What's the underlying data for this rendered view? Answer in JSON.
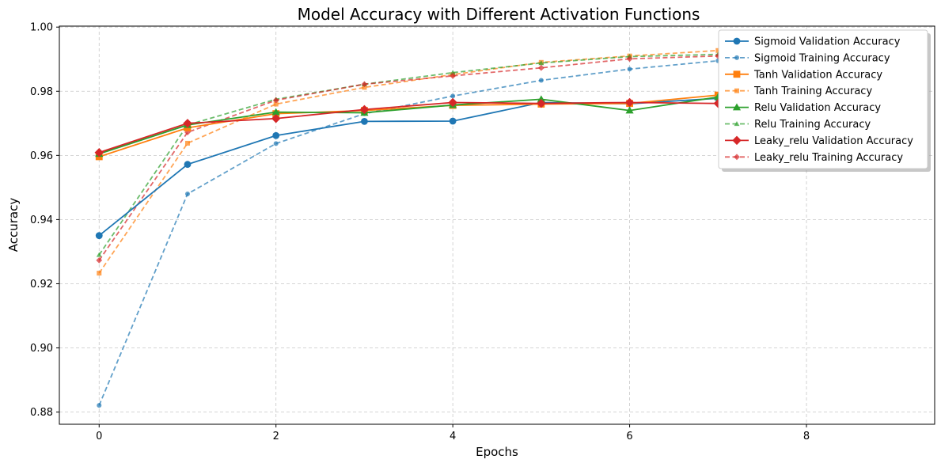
{
  "chart_data": {
    "type": "line",
    "title": "Model Accuracy with Different Activation Functions",
    "xlabel": "Epochs",
    "ylabel": "Accuracy",
    "xlim": [
      -0.45,
      9.45
    ],
    "ylim": [
      0.8762,
      1.0003
    ],
    "xticks": [
      0,
      2,
      4,
      6,
      8
    ],
    "yticks": [
      0.88,
      0.9,
      0.92,
      0.94,
      0.96,
      0.98,
      1.0
    ],
    "xtick_labels": [
      "0",
      "2",
      "4",
      "6",
      "8"
    ],
    "ytick_labels": [
      "0.88",
      "0.90",
      "0.92",
      "0.94",
      "0.96",
      "0.98",
      "1.00"
    ],
    "grid": true,
    "legend_position": "top-right",
    "x": [
      0,
      1,
      2,
      3,
      4,
      5,
      6,
      7,
      8,
      9
    ],
    "series": [
      {
        "name": "Sigmoid Validation Accuracy",
        "color": "#1f77b4",
        "style": "solid",
        "marker": "circle",
        "values": [
          0.935,
          0.9572,
          0.9662,
          0.9706,
          0.9707,
          0.9765,
          0.9761,
          0.9778,
          0.9781,
          0.9797
        ]
      },
      {
        "name": "Sigmoid Training Accuracy",
        "color": "#1f77b4",
        "style": "dashed",
        "marker": "circle",
        "values": [
          0.8821,
          0.948,
          0.9637,
          0.973,
          0.9785,
          0.9834,
          0.9869,
          0.9895,
          0.992,
          0.994
        ]
      },
      {
        "name": "Tanh Validation Accuracy",
        "color": "#ff7f0e",
        "style": "solid",
        "marker": "square",
        "values": [
          0.9596,
          0.9686,
          0.973,
          0.974,
          0.9756,
          0.976,
          0.9762,
          0.9788,
          0.9791,
          0.9795
        ]
      },
      {
        "name": "Tanh Training Accuracy",
        "color": "#ff7f0e",
        "style": "dashed",
        "marker": "square",
        "values": [
          0.9233,
          0.9638,
          0.976,
          0.9812,
          0.9852,
          0.989,
          0.991,
          0.9927,
          0.994,
          0.9952
        ]
      },
      {
        "name": "Relu Validation Accuracy",
        "color": "#2ca02c",
        "style": "solid",
        "marker": "triangle",
        "values": [
          0.9605,
          0.9695,
          0.9735,
          0.9733,
          0.9757,
          0.9775,
          0.974,
          0.9782,
          0.9786,
          0.979
        ]
      },
      {
        "name": "Relu Training Accuracy",
        "color": "#2ca02c",
        "style": "dashed",
        "marker": "triangle",
        "values": [
          0.929,
          0.9695,
          0.9775,
          0.9822,
          0.9858,
          0.9888,
          0.9908,
          0.9915,
          0.9928,
          0.9938
        ]
      },
      {
        "name": "Leaky_relu Validation Accuracy",
        "color": "#d62728",
        "style": "solid",
        "marker": "diamond",
        "values": [
          0.9609,
          0.97,
          0.9715,
          0.9743,
          0.9765,
          0.9762,
          0.9765,
          0.9762,
          0.9775,
          0.9782
        ]
      },
      {
        "name": "Leaky_relu Training Accuracy",
        "color": "#d62728",
        "style": "dashed",
        "marker": "diamond",
        "values": [
          0.9273,
          0.9672,
          0.9772,
          0.9822,
          0.9848,
          0.9873,
          0.9901,
          0.991,
          0.9925,
          0.9935
        ]
      }
    ]
  }
}
